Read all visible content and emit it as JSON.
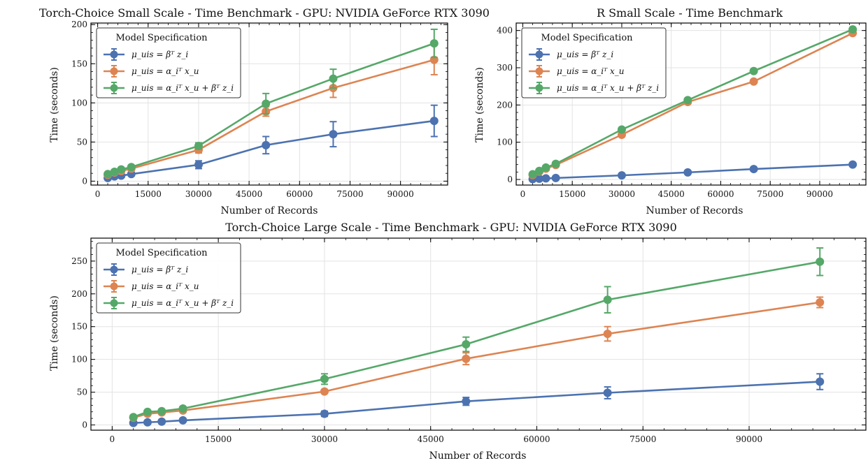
{
  "chart_data": [
    {
      "type": "line",
      "title": "Torch-Choice Small Scale - Time Benchmark - GPU: NVIDIA GeForce RTX 3090",
      "xlabel": "Number of Records",
      "ylabel": "Time (seconds)",
      "xlim": [
        -2000,
        104000
      ],
      "ylim": [
        -5,
        202
      ],
      "xticks": [
        0,
        15000,
        30000,
        45000,
        60000,
        75000,
        90000
      ],
      "yticks": [
        0,
        50,
        100,
        150,
        200
      ],
      "grid": true,
      "legend": {
        "title": "Model Specification",
        "placement": "top-left"
      },
      "x": [
        3000,
        5000,
        7000,
        10000,
        30000,
        50000,
        70000,
        100000
      ],
      "series": [
        {
          "name": "μ_uis = βᵀ z_i",
          "color": "#4c72b0",
          "values": [
            4,
            6,
            7,
            9,
            21,
            46,
            60,
            77
          ],
          "errors": [
            2,
            2,
            2,
            2,
            5,
            11,
            16,
            20
          ]
        },
        {
          "name": "μ_uis = α_iᵀ x_u",
          "color": "#dd8452",
          "values": [
            8,
            11,
            13,
            16,
            40,
            89,
            119,
            155
          ],
          "errors": [
            2,
            2,
            2,
            2,
            4,
            6,
            12,
            19
          ]
        },
        {
          "name": "μ_uis = α_iᵀ x_u + βᵀ z_i",
          "color": "#55a868",
          "values": [
            9,
            12,
            15,
            18,
            45,
            99,
            131,
            176
          ],
          "errors": [
            2,
            2,
            2,
            2,
            4,
            13,
            12,
            18
          ]
        }
      ]
    },
    {
      "type": "line",
      "title": "R Small Scale - Time Benchmark",
      "xlabel": "Number of Records",
      "ylabel": "Time (seconds)",
      "xlim": [
        -2000,
        104000
      ],
      "ylim": [
        -15,
        420
      ],
      "xticks": [
        0,
        15000,
        30000,
        45000,
        60000,
        75000,
        90000
      ],
      "yticks": [
        0,
        100,
        200,
        300,
        400
      ],
      "grid": true,
      "legend": {
        "title": "Model Specification",
        "placement": "top-left"
      },
      "x": [
        3000,
        5000,
        7000,
        10000,
        30000,
        50000,
        70000,
        100000
      ],
      "series": [
        {
          "name": "μ_uis = βᵀ z_i",
          "color": "#4c72b0",
          "values": [
            1,
            2,
            3,
            4,
            11,
            19,
            28,
            40
          ],
          "errors": [
            0,
            0,
            0,
            0,
            0,
            0,
            0,
            0
          ]
        },
        {
          "name": "μ_uis = α_iᵀ x_u",
          "color": "#dd8452",
          "values": [
            12,
            21,
            29,
            39,
            120,
            208,
            263,
            393
          ],
          "errors": [
            0,
            0,
            0,
            0,
            0,
            0,
            0,
            0
          ]
        },
        {
          "name": "μ_uis = α_iᵀ x_u + βᵀ z_i",
          "color": "#55a868",
          "values": [
            14,
            23,
            32,
            42,
            134,
            213,
            291,
            403
          ],
          "errors": [
            0,
            0,
            0,
            0,
            0,
            0,
            0,
            0
          ]
        }
      ]
    },
    {
      "type": "line",
      "title": "Torch-Choice Large Scale - Time Benchmark - GPU: NVIDIA GeForce RTX 3090",
      "xlabel": "Number of Records",
      "ylabel": "Time (seconds)",
      "xlim": [
        -3000,
        106500
      ],
      "ylim": [
        -8,
        285
      ],
      "xticks": [
        0,
        15000,
        30000,
        45000,
        60000,
        75000,
        90000
      ],
      "yticks": [
        0,
        50,
        100,
        150,
        200,
        250
      ],
      "grid": true,
      "legend": {
        "title": "Model Specification",
        "placement": "top-left"
      },
      "x": [
        3000,
        5000,
        7000,
        10000,
        30000,
        50000,
        70000,
        100000
      ],
      "series": [
        {
          "name": "μ_uis = βᵀ z_i",
          "color": "#4c72b0",
          "values": [
            3,
            4,
            5,
            7,
            17,
            36,
            49,
            66
          ],
          "errors": [
            2,
            2,
            2,
            2,
            4,
            6,
            9,
            12
          ]
        },
        {
          "name": "μ_uis = α_iᵀ x_u",
          "color": "#dd8452",
          "values": [
            11,
            17,
            19,
            22,
            51,
            101,
            139,
            187
          ],
          "errors": [
            2,
            2,
            2,
            2,
            3,
            9,
            11,
            8
          ]
        },
        {
          "name": "μ_uis = α_iᵀ x_u + βᵀ z_i",
          "color": "#55a868",
          "values": [
            12,
            20,
            21,
            25,
            70,
            123,
            191,
            249
          ],
          "errors": [
            2,
            2,
            2,
            3,
            8,
            11,
            20,
            21
          ]
        }
      ]
    }
  ]
}
